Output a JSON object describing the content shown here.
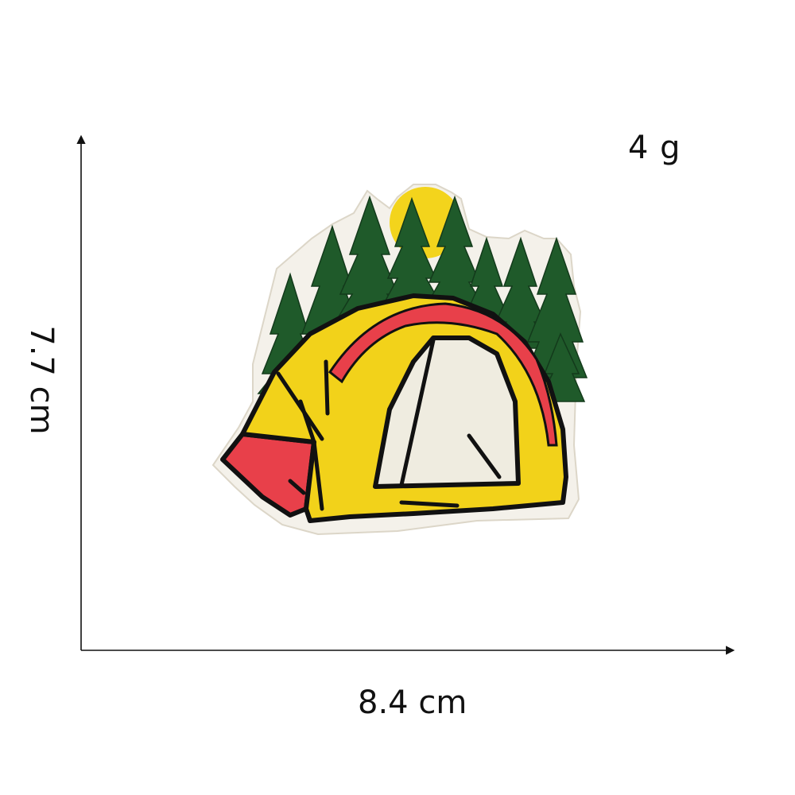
{
  "product": {
    "weight": "4 g",
    "width": "8.4 cm",
    "height": "7.7 cm"
  },
  "patch": {
    "icon": "camping-tent-patch-icon",
    "colors": {
      "tent_yellow": "#f2d21a",
      "tent_red": "#e8404a",
      "tent_door": "#efece0",
      "tree_green": "#1f5a2a",
      "sun_yellow": "#f3d41c",
      "outline": "#111111",
      "backing": "#f4f1ea"
    }
  },
  "colors": {
    "axis": "#111111",
    "background": "#ffffff"
  }
}
